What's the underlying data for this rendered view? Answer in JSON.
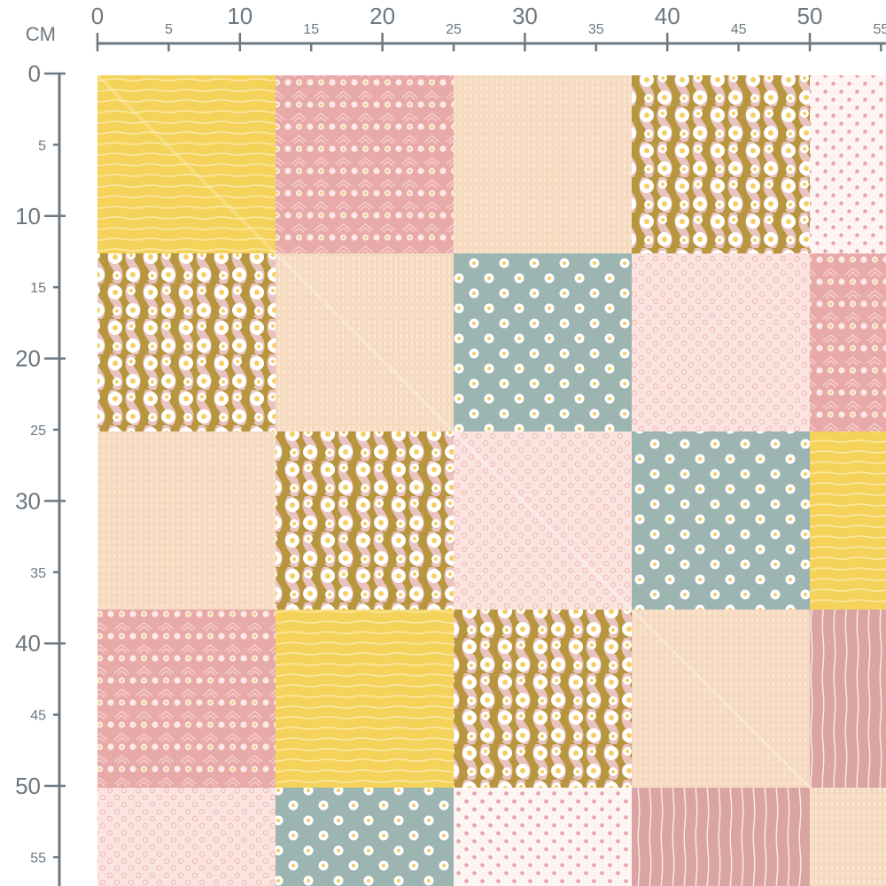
{
  "ruler": {
    "unit": "CM",
    "color": "#6d7880",
    "top_labels": [
      "0",
      "5",
      "10",
      "15",
      "20",
      "25",
      "30",
      "35",
      "40",
      "45",
      "50",
      "55"
    ],
    "left_labels": [
      "0",
      "5",
      "10",
      "15",
      "20",
      "25",
      "30",
      "35",
      "40",
      "45",
      "50",
      "55"
    ]
  },
  "fabric": {
    "tile_size_cm": 12.5,
    "patterns": {
      "yellow-stripes": {
        "bg": "#f5d35b",
        "fg": "#fbe8a6"
      },
      "pink-geo-daisy": {
        "bg": "#e8aaa8",
        "fg": "#fbe9e6"
      },
      "peach-dashes": {
        "bg": "#f6dac0",
        "fg": "#fdf0e2"
      },
      "mustard-daisy-wave": {
        "bg": "#b8963f",
        "fg": "#ffffff"
      },
      "white-pink-dots": {
        "bg": "#fdf5f3",
        "fg": "#e8a4a1"
      },
      "teal-daisy": {
        "bg": "#9db5b0",
        "fg": "#ffffff"
      },
      "light-pink-floral": {
        "bg": "#fbe4e0",
        "fg": "#f2b9b4"
      },
      "pink-stripes": {
        "bg": "#d9a4a1",
        "fg": "#fbe8e4"
      }
    },
    "grid": [
      [
        "yellow-stripes",
        "pink-geo-daisy",
        "peach-dashes",
        "mustard-daisy-wave",
        "white-pink-dots"
      ],
      [
        "mustard-daisy-wave",
        "peach-dashes",
        "teal-daisy",
        "light-pink-floral",
        "pink-geo-daisy"
      ],
      [
        "peach-dashes",
        "mustard-daisy-wave",
        "light-pink-floral",
        "teal-daisy",
        "yellow-stripes"
      ],
      [
        "pink-geo-daisy",
        "yellow-stripes",
        "mustard-daisy-wave",
        "peach-dashes",
        "pink-stripes"
      ],
      [
        "light-pink-floral",
        "teal-daisy",
        "white-pink-dots",
        "pink-stripes",
        "peach-dashes"
      ]
    ]
  }
}
